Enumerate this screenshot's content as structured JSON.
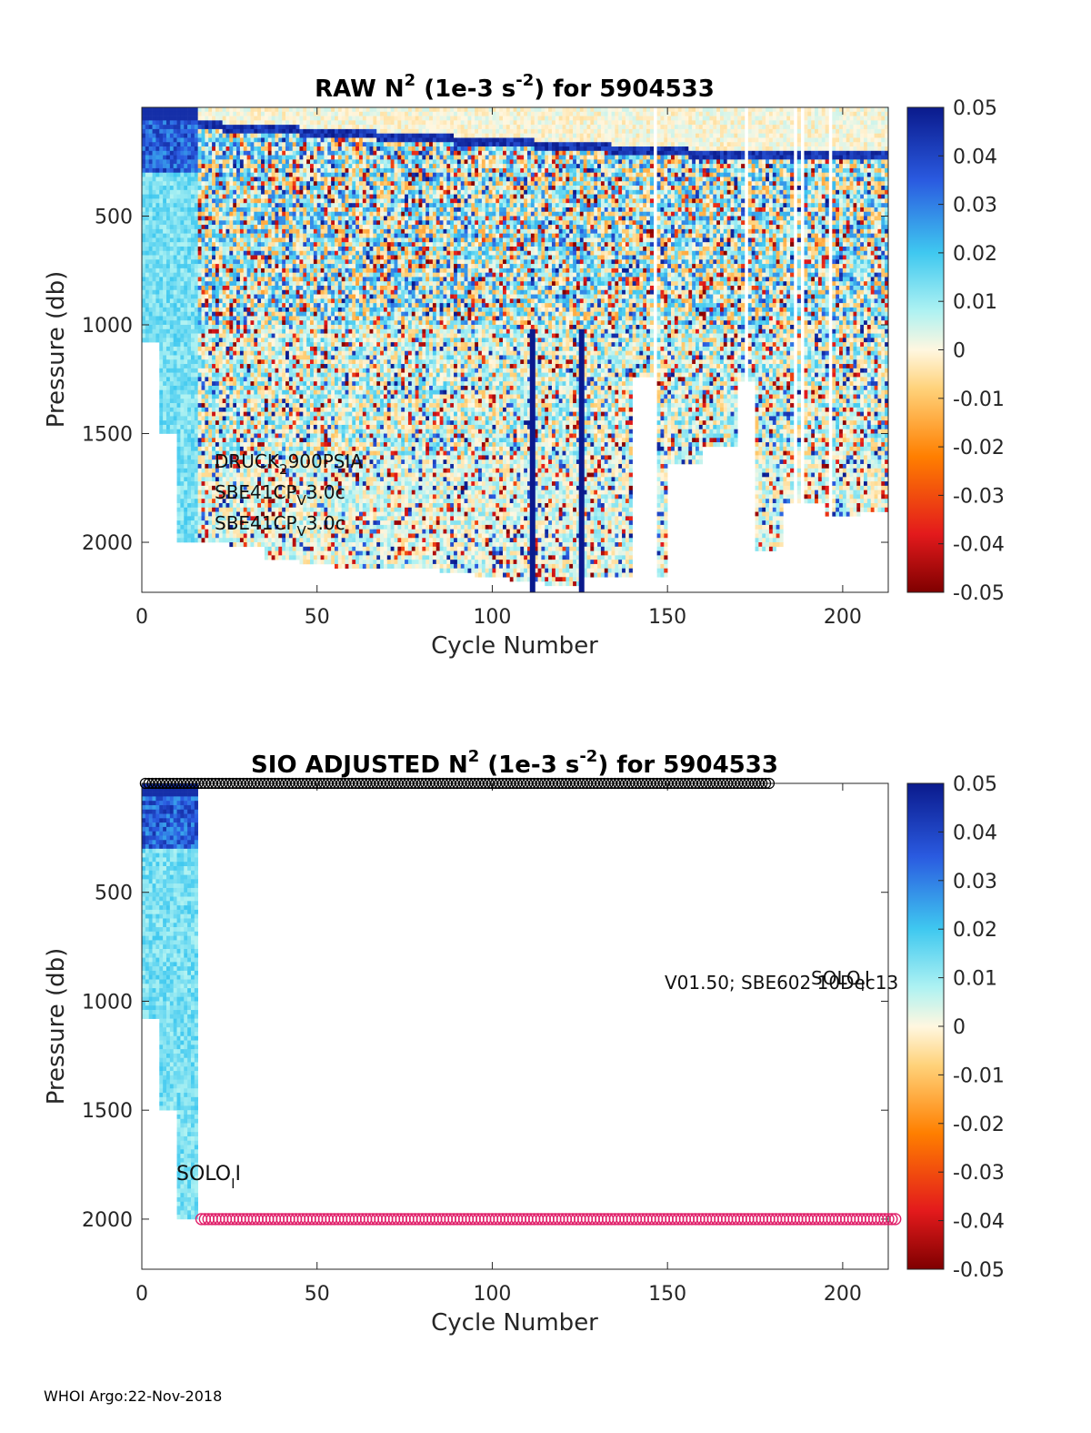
{
  "chart_data": [
    {
      "type": "heatmap",
      "title_main": "RAW N",
      "title_sup": "2",
      "title_units_pre": " (1e-3 s",
      "title_units_sup": "-2",
      "title_tail": ") for 5904533",
      "xlabel": "Cycle Number",
      "ylabel": "Pressure (db)",
      "xlim": [
        0,
        213
      ],
      "ylim": [
        0,
        2230
      ],
      "y_reversed": true,
      "xticks": [
        0,
        50,
        100,
        150,
        200
      ],
      "yticks": [
        500,
        1000,
        1500,
        2000
      ],
      "colorbar": {
        "min": -0.05,
        "max": 0.05,
        "colormap": "jet-like diverging",
        "ticks": [
          "0.05",
          "0.04",
          "0.03",
          "0.02",
          "0.01",
          "0",
          "-0.01",
          "-0.02",
          "-0.03",
          "-0.04",
          "-0.05"
        ]
      },
      "annotations": [
        {
          "text": "DRUCK",
          "sub": "2",
          "tail": "900PSIA"
        },
        {
          "text": "SBE41CP",
          "sub": "V",
          "tail": "3.0c"
        },
        {
          "text": "SBE41CP",
          "sub": "V",
          "tail": "3.0c"
        }
      ],
      "profile_depth_max": [
        [
          0,
          1080
        ],
        [
          5,
          1500
        ],
        [
          10,
          2000
        ],
        [
          17,
          2000
        ],
        [
          25,
          2020
        ],
        [
          35,
          2080
        ],
        [
          45,
          2100
        ],
        [
          55,
          2110
        ],
        [
          65,
          2110
        ],
        [
          75,
          2120
        ],
        [
          85,
          2140
        ],
        [
          95,
          2150
        ],
        [
          105,
          2170
        ],
        [
          115,
          2200
        ],
        [
          125,
          2160
        ],
        [
          137,
          2150
        ],
        [
          140,
          1230
        ],
        [
          147,
          2150
        ],
        [
          150,
          1640
        ],
        [
          160,
          1560
        ],
        [
          170,
          1250
        ],
        [
          174,
          1250
        ],
        [
          175,
          2030
        ],
        [
          181,
          2020
        ],
        [
          183,
          1820
        ],
        [
          195,
          1880
        ],
        [
          205,
          1860
        ],
        [
          213,
          1850
        ]
      ],
      "strong_columns_cycle": [
        111.5,
        125.5
      ]
    },
    {
      "type": "heatmap",
      "title_main": "SIO  ADJUSTED N",
      "title_sup": "2",
      "title_units_pre": " (1e-3 s",
      "title_units_sup": "-2",
      "title_tail": ") for 5904533",
      "xlabel": "Cycle Number",
      "ylabel": "Pressure (db)",
      "xlim": [
        0,
        213
      ],
      "ylim": [
        0,
        2230
      ],
      "y_reversed": true,
      "xticks": [
        0,
        50,
        100,
        150,
        200
      ],
      "yticks": [
        500,
        1000,
        1500,
        2000
      ],
      "colorbar": {
        "min": -0.05,
        "max": 0.05,
        "ticks": [
          "0.05",
          "0.04",
          "0.03",
          "0.02",
          "0.01",
          "0",
          "-0.01",
          "-0.02",
          "-0.03",
          "-0.04",
          "-0.05"
        ]
      },
      "adjusted_cycles": [
        0,
        16
      ],
      "markers_top": {
        "color": "#000000",
        "pressure": 0,
        "cycles_from": 1,
        "cycles_to": 179
      },
      "markers_bottom": {
        "color": "#e0206a",
        "pressure": 2000,
        "cycles_from": 17,
        "cycles_to": 215
      },
      "annotations": {
        "left_main": "SOLO",
        "left_sub": "I",
        "left_tail": "I",
        "right_back": "V01.50; SBE602 10Dec13",
        "right_over_main": "SOLO",
        "right_over_sub": "I",
        "right_over_tail": "I"
      }
    }
  ],
  "footer": "WHOI Argo:22-Nov-2018"
}
